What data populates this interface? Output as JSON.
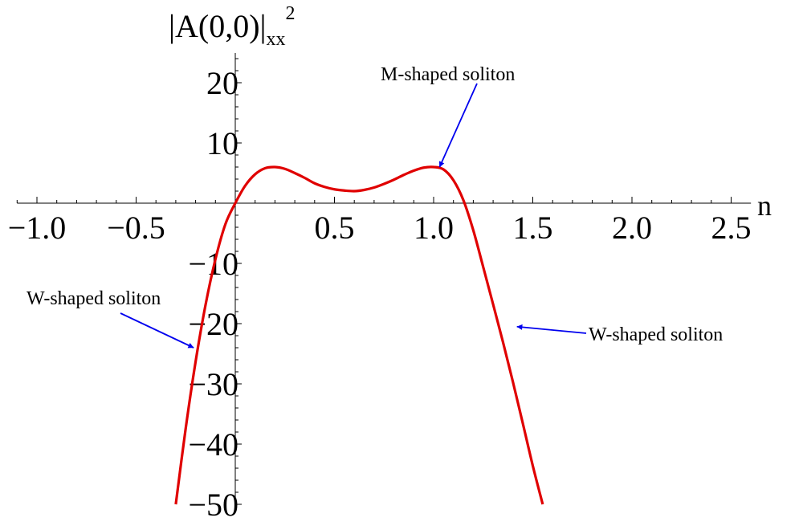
{
  "chart_data": {
    "type": "line",
    "title": "",
    "xlabel": "n",
    "ylabel": {
      "main": "|A(0,0)|",
      "subscript": "xx",
      "superscript": "2"
    },
    "xlim": [
      -1.1,
      2.6
    ],
    "ylim": [
      -50,
      25
    ],
    "x_ticks": [
      {
        "value": -1.0,
        "label": "−1.0"
      },
      {
        "value": -0.5,
        "label": "−0.5"
      },
      {
        "value": 0.5,
        "label": "0.5"
      },
      {
        "value": 1.0,
        "label": "1.0"
      },
      {
        "value": 1.5,
        "label": "1.5"
      },
      {
        "value": 2.0,
        "label": "2.0"
      },
      {
        "value": 2.5,
        "label": "2.5"
      }
    ],
    "y_ticks": [
      {
        "value": 20,
        "label": "20"
      },
      {
        "value": 10,
        "label": "10"
      },
      {
        "value": -10,
        "label": "−10"
      },
      {
        "value": -20,
        "label": "−20"
      },
      {
        "value": -30,
        "label": "−30"
      },
      {
        "value": -40,
        "label": "−40"
      },
      {
        "value": -50,
        "label": "−50"
      }
    ],
    "grid": false,
    "series": [
      {
        "color": "#e00000",
        "x": [
          -0.3,
          -0.25,
          -0.2,
          -0.15,
          -0.1,
          -0.05,
          0.0,
          0.05,
          0.1,
          0.15,
          0.2,
          0.25,
          0.3,
          0.35,
          0.4,
          0.45,
          0.5,
          0.55,
          0.6,
          0.65,
          0.7,
          0.75,
          0.8,
          0.85,
          0.9,
          0.95,
          1.0,
          1.05,
          1.1,
          1.15,
          1.2,
          1.25,
          1.3,
          1.35,
          1.4,
          1.45,
          1.5,
          1.55
        ],
        "y": [
          -50.0,
          -37.4,
          -26.3,
          -16.9,
          -9.3,
          -3.5,
          0.0,
          2.9,
          4.8,
          5.8,
          6.0,
          5.7,
          5.0,
          4.2,
          3.3,
          2.7,
          2.3,
          2.1,
          2.0,
          2.2,
          2.6,
          3.2,
          3.9,
          4.7,
          5.4,
          5.9,
          6.0,
          5.6,
          3.8,
          0.5,
          -4.5,
          -10.6,
          -16.8,
          -23.1,
          -29.7,
          -36.6,
          -43.6,
          -50.0
        ]
      }
    ],
    "annotations": [
      {
        "text": "M-shaped soliton",
        "target": [
          1.03,
          6.0
        ],
        "arrow_color": "#0000ee"
      },
      {
        "text": "W-shaped soliton",
        "target": [
          -0.21,
          -24.0
        ],
        "arrow_color": "#0000ee"
      },
      {
        "text": "W-shaped soliton",
        "target": [
          1.42,
          -20.5
        ],
        "arrow_color": "#0000ee"
      }
    ]
  }
}
